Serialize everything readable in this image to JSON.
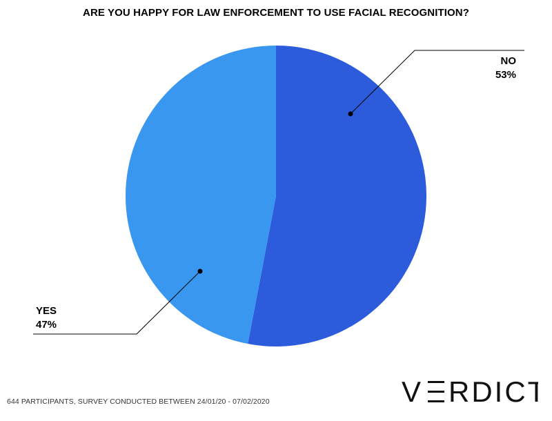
{
  "chart_data": {
    "type": "pie",
    "title": "ARE YOU HAPPY FOR LAW ENFORCEMENT TO USE FACIAL RECOGNITION?",
    "slices": [
      {
        "label": "NO",
        "value": 53,
        "value_label": "53%",
        "color": "#2c5bdc"
      },
      {
        "label": "YES",
        "value": 47,
        "value_label": "47%",
        "color": "#3a97ef"
      }
    ],
    "start": "12 o'clock",
    "direction": "clockwise",
    "legend": "none",
    "grid": false
  },
  "footer": {
    "note": "644 PARTICIPANTS, SURVEY CONDUCTED BETWEEN 24/01/20 - 07/02/2020",
    "brand": "VERDICT"
  }
}
